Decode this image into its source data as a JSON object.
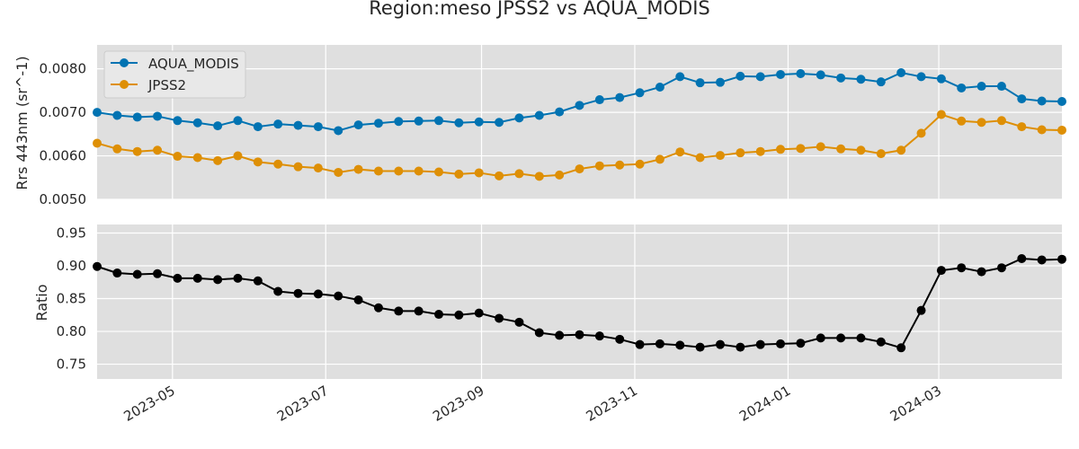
{
  "title": "Region:meso JPSS2 vs AQUA_MODIS",
  "chart_data": [
    {
      "type": "line",
      "ylabel": "Rrs 443nm (sr^-1)",
      "xlabel": "",
      "ylim": [
        0.005,
        0.00855
      ],
      "yticks": [
        "0.0050",
        "0.0060",
        "0.0070",
        "0.0080"
      ],
      "ytick_values": [
        0.005,
        0.006,
        0.007,
        0.008
      ],
      "grid": true,
      "legend_position": "top-left",
      "x": [
        "2023-04-01",
        "2023-04-09",
        "2023-04-17",
        "2023-04-25",
        "2023-05-03",
        "2023-05-11",
        "2023-05-19",
        "2023-05-27",
        "2023-06-04",
        "2023-06-12",
        "2023-06-20",
        "2023-06-28",
        "2023-07-06",
        "2023-07-14",
        "2023-07-22",
        "2023-07-30",
        "2023-08-07",
        "2023-08-15",
        "2023-08-23",
        "2023-08-31",
        "2023-09-08",
        "2023-09-16",
        "2023-09-24",
        "2023-10-02",
        "2023-10-10",
        "2023-10-18",
        "2023-10-26",
        "2023-11-03",
        "2023-11-11",
        "2023-11-19",
        "2023-11-27",
        "2023-12-05",
        "2023-12-13",
        "2023-12-21",
        "2023-12-29",
        "2024-01-06",
        "2024-01-14",
        "2024-01-22",
        "2024-01-30",
        "2024-02-07",
        "2024-02-15",
        "2024-02-23",
        "2024-03-02",
        "2024-03-10",
        "2024-03-18",
        "2024-03-26",
        "2024-04-03",
        "2024-04-11",
        "2024-04-19"
      ],
      "series": [
        {
          "name": "AQUA_MODIS",
          "color": "#0173b2",
          "values": [
            0.007,
            0.00693,
            0.00689,
            0.00691,
            0.00681,
            0.00676,
            0.00669,
            0.00681,
            0.00667,
            0.00673,
            0.0067,
            0.00667,
            0.00658,
            0.00671,
            0.00675,
            0.00679,
            0.0068,
            0.00681,
            0.00676,
            0.00678,
            0.00677,
            0.00687,
            0.00693,
            0.00701,
            0.00716,
            0.00729,
            0.00734,
            0.00745,
            0.00758,
            0.00782,
            0.00768,
            0.00769,
            0.00783,
            0.00782,
            0.00787,
            0.00789,
            0.00786,
            0.00779,
            0.00776,
            0.0077,
            0.00791,
            0.00782,
            0.00777,
            0.00756,
            0.0076,
            0.0076,
            0.00731,
            0.00726,
            0.00725
          ]
        },
        {
          "name": "JPSS2",
          "color": "#de8f05",
          "values": [
            0.00629,
            0.00616,
            0.0061,
            0.00613,
            0.00599,
            0.00596,
            0.00589,
            0.006,
            0.00586,
            0.00581,
            0.00575,
            0.00572,
            0.00562,
            0.00569,
            0.00565,
            0.00565,
            0.00565,
            0.00563,
            0.00558,
            0.00561,
            0.00554,
            0.00559,
            0.00553,
            0.00556,
            0.0057,
            0.00577,
            0.00579,
            0.00581,
            0.00592,
            0.00609,
            0.00596,
            0.00601,
            0.00607,
            0.0061,
            0.00615,
            0.00617,
            0.00621,
            0.00616,
            0.00613,
            0.00605,
            0.00613,
            0.00652,
            0.00695,
            0.0068,
            0.00677,
            0.00681,
            0.00667,
            0.0066,
            0.00659
          ]
        }
      ]
    },
    {
      "type": "line",
      "ylabel": "Ratio",
      "xlabel": "",
      "ylim": [
        0.7275,
        0.963
      ],
      "yticks": [
        "0.75",
        "0.80",
        "0.85",
        "0.90",
        "0.95"
      ],
      "ytick_values": [
        0.75,
        0.8,
        0.85,
        0.9,
        0.95
      ],
      "xticks": [
        "2023-05",
        "2023-07",
        "2023-09",
        "2023-11",
        "2024-01",
        "2024-03"
      ],
      "xtick_dates": [
        "2023-05-01",
        "2023-07-01",
        "2023-09-01",
        "2023-11-01",
        "2024-01-01",
        "2024-03-01"
      ],
      "grid": true,
      "series": [
        {
          "name": "Ratio",
          "color": "#000000",
          "values": [
            0.899,
            0.889,
            0.887,
            0.888,
            0.881,
            0.881,
            0.879,
            0.881,
            0.877,
            0.861,
            0.858,
            0.857,
            0.854,
            0.848,
            0.836,
            0.831,
            0.831,
            0.826,
            0.825,
            0.828,
            0.82,
            0.814,
            0.798,
            0.794,
            0.795,
            0.793,
            0.788,
            0.78,
            0.781,
            0.779,
            0.776,
            0.78,
            0.776,
            0.78,
            0.781,
            0.782,
            0.79,
            0.79,
            0.79,
            0.784,
            0.775,
            0.832,
            0.893,
            0.897,
            0.891,
            0.897,
            0.911,
            0.909,
            0.91
          ]
        }
      ]
    }
  ]
}
